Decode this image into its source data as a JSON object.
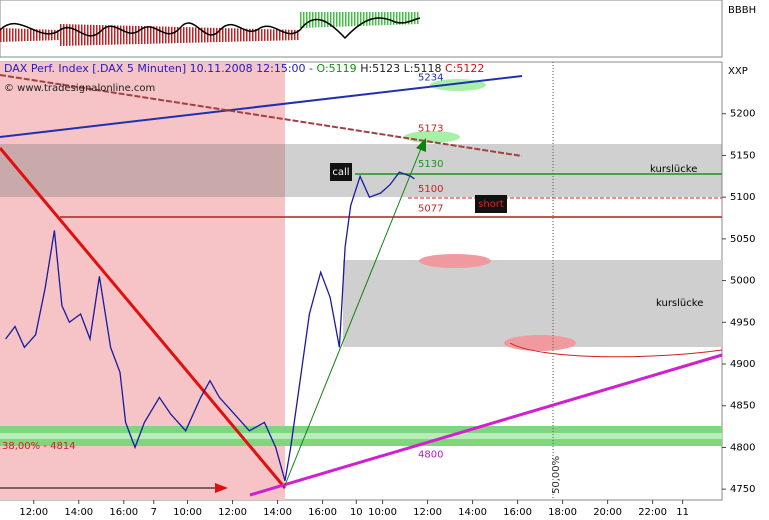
{
  "chart_data": {
    "type": "line",
    "title_parts": [
      "DAX Perf. Index [.DAX  5 Minuten] 10.11.2008 12:15:00 - ",
      "O:5119",
      "H:5123",
      "L:5118",
      "C:5122"
    ],
    "title_colors": [
      "#2020c0",
      "#109010",
      "#202020",
      "#202020",
      "#d01010"
    ],
    "copyright": "© www.tradesignalonline.com",
    "indicator_label": "BBBH",
    "axis_label": "XXP",
    "annotations": {
      "call": "call",
      "short": "short",
      "gap_upper": "kurslücke",
      "gap_lower": "kurslücke",
      "fib_38": "38,00% - 4814",
      "fib_50": "50,00%"
    },
    "levels": [
      {
        "value": 5234,
        "color": "#2030b0"
      },
      {
        "value": 5173,
        "color": "#d02020"
      },
      {
        "value": 5130,
        "color": "#209020"
      },
      {
        "value": 5100,
        "color": "#d02020"
      },
      {
        "value": 5077,
        "color": "#d02020"
      },
      {
        "value": 4800,
        "color": "#b020b0"
      }
    ],
    "xlim": [
      0,
      385
    ],
    "xticks": [
      {
        "value": 18,
        "label": "12:00"
      },
      {
        "value": 42,
        "label": "14:00"
      },
      {
        "value": 66,
        "label": "16:00"
      },
      {
        "value": 82,
        "label": "7"
      },
      {
        "value": 100,
        "label": "10:00"
      },
      {
        "value": 124,
        "label": "12:00"
      },
      {
        "value": 148,
        "label": "14:00"
      },
      {
        "value": 172,
        "label": "16:00"
      },
      {
        "value": 190,
        "label": "10"
      },
      {
        "value": 204,
        "label": "10:00"
      },
      {
        "value": 228,
        "label": "12:00"
      },
      {
        "value": 252,
        "label": "14:00"
      },
      {
        "value": 276,
        "label": "16:00"
      },
      {
        "value": 300,
        "label": "18:00"
      },
      {
        "value": 324,
        "label": "20:00"
      },
      {
        "value": 348,
        "label": "22:00"
      },
      {
        "value": 364,
        "label": "11"
      }
    ],
    "ylim": [
      4737,
      5262
    ],
    "yticks": [
      4750,
      4800,
      4850,
      4900,
      4950,
      5000,
      5050,
      5100,
      5150,
      5200
    ],
    "series": [
      {
        "name": "DAX",
        "color": "#1a1aa0",
        "x": [
          3,
          8,
          13,
          19,
          24,
          29,
          33,
          37,
          43,
          48,
          53,
          59,
          64,
          67,
          72,
          77,
          85,
          91,
          99,
          107,
          112,
          117,
          125,
          133,
          141,
          147,
          152,
          155,
          160,
          165,
          171,
          176,
          181,
          184,
          187,
          192,
          197,
          203,
          208,
          213,
          219,
          221
        ],
        "values": [
          4930,
          4945,
          4920,
          4935,
          4990,
          5060,
          4970,
          4950,
          4960,
          4930,
          5005,
          4920,
          4890,
          4830,
          4800,
          4830,
          4860,
          4840,
          4820,
          4860,
          4880,
          4860,
          4840,
          4820,
          4830,
          4800,
          4760,
          4800,
          4880,
          4960,
          5010,
          4980,
          4920,
          5040,
          5090,
          5125,
          5100,
          5105,
          5115,
          5130,
          5125,
          5122
        ]
      }
    ]
  }
}
